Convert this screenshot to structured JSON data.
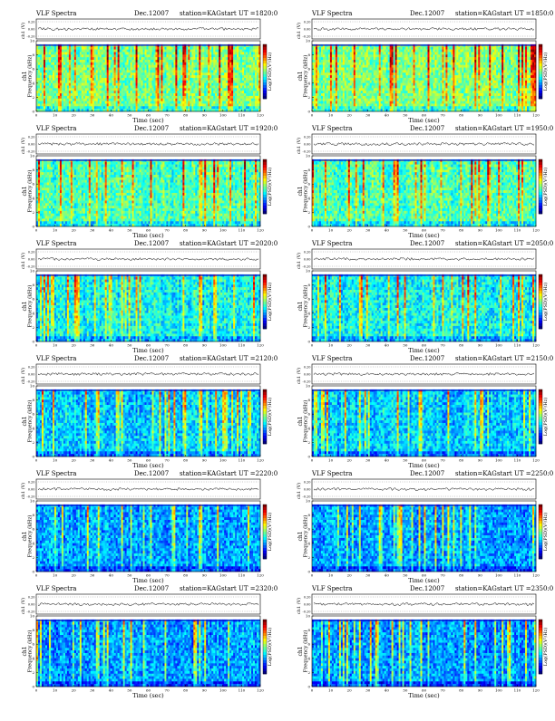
{
  "page_title": "VLF Spectra",
  "chart_data": [
    {
      "type": "heatmap",
      "title": "VLF Spectra",
      "date": "Dec.12007",
      "station": "station=KAG",
      "start": "start  UT  =1820:0",
      "ylabel_top": "ch1 (V)",
      "ylabel": "Frequency  (kHz)",
      "ylabel_ch": "ch1",
      "xlabel": "Time  (sec)",
      "colorbar_label": "Log(PSD)(V²/Hz)",
      "xlim": [
        0,
        120
      ],
      "ylim": [
        0,
        10
      ],
      "x_ticks": [
        0,
        10,
        20,
        30,
        40,
        50,
        60,
        70,
        80,
        90,
        100,
        110,
        120
      ],
      "y_ticks": [
        0,
        2,
        4,
        6,
        8,
        10
      ],
      "top_ticks": [
        "0.20",
        "0.00",
        "-0.20"
      ],
      "colormap": "jet",
      "band_top_khz": 9.5,
      "intensity": "high"
    },
    {
      "type": "heatmap",
      "title": "VLF Spectra",
      "date": "Dec.12007",
      "station": "station=KAG",
      "start": "start  UT  =1850:0",
      "ylabel_top": "ch1 (V)",
      "ylabel": "Frequency  (kHz)",
      "ylabel_ch": "ch1",
      "xlabel": "Time  (sec)",
      "colorbar_label": "Log(PSD)(V²/Hz)",
      "xlim": [
        0,
        120
      ],
      "ylim": [
        0,
        10
      ],
      "x_ticks": [
        0,
        10,
        20,
        30,
        40,
        50,
        60,
        70,
        80,
        90,
        100,
        110,
        120
      ],
      "y_ticks": [
        0,
        2,
        4,
        6,
        8,
        10
      ],
      "top_ticks": [
        "0.20",
        "0.00",
        "-0.20"
      ],
      "colormap": "jet",
      "band_top_khz": 9.5,
      "intensity": "high"
    },
    {
      "type": "heatmap",
      "title": "VLF Spectra",
      "date": "Dec.12007",
      "station": "station=KAG",
      "start": "start  UT  =1920:0",
      "ylabel_top": "ch1 (V)",
      "ylabel": "Frequency  (kHz)",
      "ylabel_ch": "ch1",
      "xlabel": "Time  (sec)",
      "colorbar_label": "Log(PSD)(V²/Hz)",
      "xlim": [
        0,
        120
      ],
      "ylim": [
        0,
        10
      ],
      "x_ticks": [
        0,
        10,
        20,
        30,
        40,
        50,
        60,
        70,
        80,
        90,
        100,
        110,
        120
      ],
      "y_ticks": [
        0,
        2,
        4,
        6,
        8,
        10
      ],
      "top_ticks": [
        "0.20",
        "0.00",
        "-0.20"
      ],
      "colormap": "jet",
      "band_top_khz": 9.5,
      "intensity": "medium-high"
    },
    {
      "type": "heatmap",
      "title": "VLF Spectra",
      "date": "Dec.12007",
      "station": "station=KAG",
      "start": "start  UT  =1950:0",
      "ylabel_top": "ch1 (V)",
      "ylabel": "Frequency  (kHz)",
      "ylabel_ch": "ch1",
      "xlabel": "Time  (sec)",
      "colorbar_label": "Log(PSD)(V²/Hz)",
      "xlim": [
        0,
        120
      ],
      "ylim": [
        0,
        10
      ],
      "x_ticks": [
        0,
        10,
        20,
        30,
        40,
        50,
        60,
        70,
        80,
        90,
        100,
        110,
        120
      ],
      "y_ticks": [
        0,
        2,
        4,
        6,
        8,
        10
      ],
      "top_ticks": [
        "0.20",
        "0.00",
        "-0.20"
      ],
      "colormap": "jet",
      "band_top_khz": 9.5,
      "intensity": "medium-high"
    },
    {
      "type": "heatmap",
      "title": "VLF Spectra",
      "date": "Dec.12007",
      "station": "station=KAG",
      "start": "start  UT  =2020:0",
      "ylabel_top": "ch1 (V)",
      "ylabel": "Frequency  (kHz)",
      "ylabel_ch": "ch1",
      "xlabel": "Time  (sec)",
      "colorbar_label": "Log(PSD)(V²/Hz)",
      "xlim": [
        0,
        120
      ],
      "ylim": [
        0,
        10
      ],
      "x_ticks": [
        0,
        10,
        20,
        30,
        40,
        50,
        60,
        70,
        80,
        90,
        100,
        110,
        120
      ],
      "y_ticks": [
        0,
        2,
        4,
        6,
        8,
        10
      ],
      "top_ticks": [
        "0.20",
        "0.00",
        "-0.20"
      ],
      "colormap": "jet",
      "band_top_khz": 9.5,
      "intensity": "medium"
    },
    {
      "type": "heatmap",
      "title": "VLF Spectra",
      "date": "Dec.12007",
      "station": "station=KAG",
      "start": "start  UT  =2050:0",
      "ylabel_top": "ch1 (V)",
      "ylabel": "Frequency  (kHz)",
      "ylabel_ch": "ch1",
      "xlabel": "Time  (sec)",
      "colorbar_label": "Log(PSD)(V²/Hz)",
      "xlim": [
        0,
        120
      ],
      "ylim": [
        0,
        10
      ],
      "x_ticks": [
        0,
        10,
        20,
        30,
        40,
        50,
        60,
        70,
        80,
        90,
        100,
        110,
        120
      ],
      "y_ticks": [
        0,
        2,
        4,
        6,
        8,
        10
      ],
      "top_ticks": [
        "0.20",
        "0.00",
        "-0.20"
      ],
      "colormap": "jet",
      "band_top_khz": 9.5,
      "intensity": "medium"
    },
    {
      "type": "heatmap",
      "title": "VLF Spectra",
      "date": "Dec.12007",
      "station": "station=KAG",
      "start": "start  UT  =2120:0",
      "ylabel_top": "ch1 (V)",
      "ylabel": "Frequency  (kHz)",
      "ylabel_ch": "ch1",
      "xlabel": "Time  (sec)",
      "colorbar_label": "Log(PSD)(V²/Hz)",
      "xlim": [
        0,
        120
      ],
      "ylim": [
        0,
        10
      ],
      "x_ticks": [
        0,
        10,
        20,
        30,
        40,
        50,
        60,
        70,
        80,
        90,
        100,
        110,
        120
      ],
      "y_ticks": [
        0,
        2,
        4,
        6,
        8,
        10
      ],
      "top_ticks": [
        "0.20",
        "0.00",
        "-0.20"
      ],
      "colormap": "jet",
      "band_top_khz": 9.5,
      "intensity": "medium-low"
    },
    {
      "type": "heatmap",
      "title": "VLF Spectra",
      "date": "Dec.12007",
      "station": "station=KAG",
      "start": "start  UT  =2150:0",
      "ylabel_top": "ch1 (V)",
      "ylabel": "Frequency  (kHz)",
      "ylabel_ch": "ch1",
      "xlabel": "Time  (sec)",
      "colorbar_label": "Log(PSD)(V²/Hz)",
      "xlim": [
        0,
        120
      ],
      "ylim": [
        0,
        10
      ],
      "x_ticks": [
        0,
        10,
        20,
        30,
        40,
        50,
        60,
        70,
        80,
        90,
        100,
        110,
        120
      ],
      "y_ticks": [
        0,
        2,
        4,
        6,
        8,
        10
      ],
      "top_ticks": [
        "0.20",
        "0.00",
        "-0.20"
      ],
      "colormap": "jet",
      "band_top_khz": 9.5,
      "intensity": "medium-low"
    },
    {
      "type": "heatmap",
      "title": "VLF Spectra",
      "date": "Dec.12007",
      "station": "station=KAG",
      "start": "start  UT  =2220:0",
      "ylabel_top": "ch1 (V)",
      "ylabel": "Frequency  (kHz)",
      "ylabel_ch": "ch1",
      "xlabel": "Time  (sec)",
      "colorbar_label": "Log(PSD)(V²/Hz)",
      "xlim": [
        0,
        120
      ],
      "ylim": [
        0,
        10
      ],
      "x_ticks": [
        0,
        10,
        20,
        30,
        40,
        50,
        60,
        70,
        80,
        90,
        100,
        110,
        120
      ],
      "y_ticks": [
        0,
        2,
        4,
        6,
        8,
        10
      ],
      "top_ticks": [
        "0.20",
        "0.00",
        "-0.20"
      ],
      "colormap": "jet",
      "band_top_khz": 9.5,
      "intensity": "low"
    },
    {
      "type": "heatmap",
      "title": "VLF Spectra",
      "date": "Dec.12007",
      "station": "station=KAG",
      "start": "start  UT  =2250:0",
      "ylabel_top": "ch1 (V)",
      "ylabel": "Frequency  (kHz)",
      "ylabel_ch": "ch1",
      "xlabel": "Time  (sec)",
      "colorbar_label": "Log(PSD)(V²/Hz)",
      "xlim": [
        0,
        120
      ],
      "ylim": [
        0,
        10
      ],
      "x_ticks": [
        0,
        10,
        20,
        30,
        40,
        50,
        60,
        70,
        80,
        90,
        100,
        110,
        120
      ],
      "y_ticks": [
        0,
        2,
        4,
        6,
        8,
        10
      ],
      "top_ticks": [
        "0.20",
        "0.00",
        "-0.20"
      ],
      "colormap": "jet",
      "band_top_khz": 9.5,
      "intensity": "low"
    },
    {
      "type": "heatmap",
      "title": "VLF Spectra",
      "date": "Dec.12007",
      "station": "station=KAG",
      "start": "start  UT  =2320:0",
      "ylabel_top": "ch1 (V)",
      "ylabel": "Frequency  (kHz)",
      "ylabel_ch": "ch1",
      "xlabel": "Time  (sec)",
      "colorbar_label": "Log(PSD)(V²/Hz)",
      "xlim": [
        0,
        120
      ],
      "ylim": [
        0,
        10
      ],
      "x_ticks": [
        0,
        10,
        20,
        30,
        40,
        50,
        60,
        70,
        80,
        90,
        100,
        110,
        120
      ],
      "y_ticks": [
        0,
        2,
        4,
        6,
        8,
        10
      ],
      "top_ticks": [
        "0.20",
        "0.00",
        "-0.20"
      ],
      "colormap": "jet",
      "band_top_khz": 9.5,
      "intensity": "low"
    },
    {
      "type": "heatmap",
      "title": "VLF Spectra",
      "date": "Dec.12007",
      "station": "station=KAG",
      "start": "start  UT  =2350:0",
      "ylabel_top": "ch1 (V)",
      "ylabel": "Frequency  (kHz)",
      "ylabel_ch": "ch1",
      "xlabel": "Time  (sec)",
      "colorbar_label": "Log(PSD)(V²/Hz)",
      "xlim": [
        0,
        120
      ],
      "ylim": [
        0,
        10
      ],
      "x_ticks": [
        0,
        10,
        20,
        30,
        40,
        50,
        60,
        70,
        80,
        90,
        100,
        110,
        120
      ],
      "y_ticks": [
        0,
        2,
        4,
        6,
        8,
        10
      ],
      "top_ticks": [
        "0.20",
        "0.00",
        "-0.20"
      ],
      "colormap": "jet",
      "band_top_khz": 9.5,
      "intensity": "low"
    }
  ]
}
